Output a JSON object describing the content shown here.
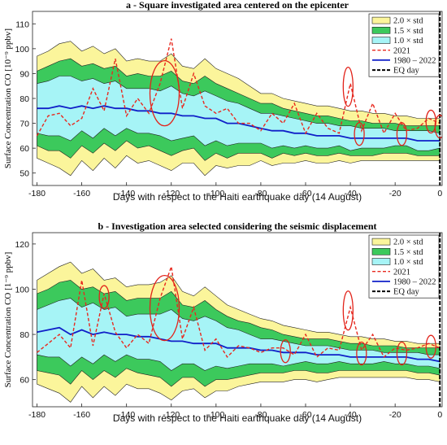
{
  "chart_data": [
    {
      "type": "area",
      "title": "a - Square investigated area centered on the epicenter",
      "xlabel": "Days with respect to the Haiti earthquake day (14 August)",
      "ylabel": "Surface Concentration CO [10⁻⁹ ppbv]",
      "xlim": [
        -182,
        1
      ],
      "ylim": [
        45,
        115
      ],
      "xticks": [
        -180,
        -160,
        -140,
        -120,
        -100,
        -80,
        -60,
        -40,
        -20,
        0
      ],
      "yticks": [
        50,
        60,
        70,
        80,
        90,
        100,
        110
      ],
      "grid": false,
      "legend_position": "top-right",
      "legend": [
        "2.0 × std",
        "1.5 × std",
        "1.0 × std",
        "2021",
        "1980 – 2022",
        "EQ day"
      ],
      "x": [
        -180,
        -175,
        -170,
        -165,
        -160,
        -155,
        -150,
        -145,
        -140,
        -135,
        -130,
        -125,
        -120,
        -115,
        -110,
        -105,
        -100,
        -95,
        -90,
        -85,
        -80,
        -75,
        -70,
        -65,
        -60,
        -55,
        -50,
        -45,
        -40,
        -35,
        -30,
        -25,
        -20,
        -15,
        -10,
        -5,
        0
      ],
      "series": [
        {
          "name": "1980 – 2022",
          "values": [
            76,
            76,
            77,
            76,
            77,
            76,
            77,
            76,
            76,
            75,
            75,
            74,
            74,
            73,
            73,
            72,
            72,
            70,
            70,
            69,
            68,
            67,
            67,
            66,
            66,
            65,
            65,
            65,
            64,
            64,
            64,
            64,
            64,
            64,
            63,
            63,
            63
          ]
        },
        {
          "name": "2021",
          "values": [
            65,
            73,
            74,
            69,
            72,
            84,
            75,
            96,
            73,
            80,
            74,
            86,
            104,
            76,
            90,
            77,
            74,
            76,
            70,
            70,
            67,
            74,
            70,
            78,
            66,
            74,
            68,
            66,
            86,
            67,
            78,
            66,
            74,
            67,
            68,
            72,
            70
          ]
        },
        {
          "name": "2.0 × std upper",
          "values": [
            97,
            99,
            102,
            103,
            99,
            101,
            98,
            100,
            95,
            96,
            95,
            95,
            98,
            93,
            92,
            96,
            92,
            90,
            88,
            85,
            82,
            82,
            80,
            79,
            78,
            77,
            77,
            76,
            75,
            75,
            74,
            74,
            73,
            73,
            72,
            72,
            72
          ]
        },
        {
          "name": "1.5 × std upper",
          "values": [
            91,
            93,
            95,
            96,
            93,
            94,
            92,
            93,
            89,
            90,
            89,
            89,
            91,
            87,
            86,
            89,
            86,
            84,
            82,
            80,
            78,
            78,
            76,
            75,
            74,
            73,
            73,
            72,
            71,
            71,
            70,
            70,
            70,
            69,
            69,
            69,
            69
          ]
        },
        {
          "name": "1.0 × std upper",
          "values": [
            86,
            87,
            89,
            89,
            87,
            88,
            86,
            87,
            84,
            84,
            84,
            83,
            85,
            82,
            81,
            83,
            81,
            79,
            78,
            76,
            74,
            74,
            73,
            72,
            71,
            70,
            70,
            69,
            69,
            68,
            68,
            68,
            67,
            67,
            67,
            67,
            66
          ]
        },
        {
          "name": "1.0 × std lower",
          "values": [
            66,
            65,
            65,
            63,
            67,
            64,
            68,
            65,
            68,
            66,
            66,
            65,
            63,
            64,
            65,
            61,
            63,
            61,
            62,
            62,
            62,
            60,
            61,
            60,
            61,
            60,
            60,
            61,
            59,
            60,
            60,
            60,
            61,
            61,
            59,
            59,
            60
          ]
        },
        {
          "name": "1.5 × std lower",
          "values": [
            61,
            59,
            59,
            56,
            61,
            58,
            62,
            59,
            63,
            60,
            61,
            59,
            57,
            59,
            60,
            55,
            58,
            56,
            58,
            58,
            58,
            56,
            58,
            57,
            58,
            57,
            57,
            58,
            57,
            57,
            57,
            58,
            58,
            58,
            57,
            57,
            57
          ]
        },
        {
          "name": "2.0 × std lower",
          "values": [
            56,
            54,
            52,
            49,
            55,
            51,
            56,
            52,
            57,
            54,
            55,
            53,
            51,
            54,
            54,
            49,
            53,
            52,
            53,
            53,
            55,
            53,
            54,
            54,
            55,
            54,
            54,
            55,
            54,
            55,
            55,
            55,
            55,
            55,
            55,
            55,
            55
          ]
        }
      ],
      "highlighted_days": [
        -123,
        -41,
        -36,
        -17,
        -4,
        0
      ]
    },
    {
      "type": "area",
      "title": "b - Investigation area selected considering the seismic displacement",
      "xlabel": "Days with respect to the Haiti earthquake day (14 August)",
      "ylabel": "Surface Concentration CO [1⁻⁹ ppbv]",
      "xlim": [
        -182,
        1
      ],
      "ylim": [
        48,
        125
      ],
      "xticks": [
        -180,
        -160,
        -140,
        -120,
        -100,
        -80,
        -60,
        -40,
        -20,
        0
      ],
      "yticks": [
        60,
        80,
        100,
        120
      ],
      "grid": false,
      "legend_position": "top-right",
      "legend": [
        "2.0 × std",
        "1.5 × std",
        "1.0 × std",
        "2021",
        "1980 – 2022",
        "EQ day"
      ],
      "x": [
        -180,
        -175,
        -170,
        -165,
        -160,
        -155,
        -150,
        -145,
        -140,
        -135,
        -130,
        -125,
        -120,
        -115,
        -110,
        -105,
        -100,
        -95,
        -90,
        -85,
        -80,
        -75,
        -70,
        -65,
        -60,
        -55,
        -50,
        -45,
        -40,
        -35,
        -30,
        -25,
        -20,
        -15,
        -10,
        -5,
        0
      ],
      "series": [
        {
          "name": "1980 – 2022",
          "values": [
            81,
            82,
            83,
            80,
            82,
            80,
            81,
            80,
            80,
            79,
            79,
            78,
            77,
            77,
            76,
            76,
            76,
            74,
            74,
            74,
            73,
            73,
            72,
            72,
            72,
            71,
            71,
            71,
            70,
            70,
            70,
            70,
            70,
            70,
            69,
            69,
            68
          ]
        },
        {
          "name": "2021",
          "values": [
            72,
            76,
            80,
            74,
            104,
            75,
            98,
            81,
            74,
            80,
            76,
            96,
            110,
            78,
            92,
            73,
            78,
            70,
            75,
            74,
            72,
            74,
            74,
            71,
            80,
            70,
            74,
            73,
            92,
            73,
            80,
            70,
            74,
            73,
            74,
            76,
            74
          ]
        },
        {
          "name": "2.0 × std upper",
          "values": [
            104,
            107,
            110,
            112,
            107,
            109,
            104,
            105,
            101,
            102,
            102,
            103,
            106,
            99,
            97,
            101,
            97,
            93,
            91,
            89,
            87,
            86,
            84,
            83,
            82,
            81,
            81,
            80,
            79,
            79,
            78,
            78,
            77,
            77,
            76,
            76,
            76
          ]
        },
        {
          "name": "1.5 × std upper",
          "values": [
            98,
            100,
            103,
            104,
            100,
            101,
            98,
            99,
            95,
            96,
            96,
            96,
            99,
            93,
            92,
            95,
            91,
            88,
            86,
            85,
            83,
            82,
            80,
            79,
            78,
            78,
            78,
            77,
            76,
            76,
            75,
            75,
            75,
            74,
            74,
            74,
            74
          ]
        },
        {
          "name": "1.0 × std upper",
          "values": [
            91,
            93,
            95,
            96,
            92,
            94,
            91,
            92,
            88,
            89,
            89,
            89,
            91,
            87,
            86,
            88,
            86,
            83,
            82,
            80,
            78,
            78,
            77,
            76,
            75,
            75,
            75,
            74,
            73,
            73,
            73,
            72,
            72,
            72,
            72,
            71,
            71
          ]
        },
        {
          "name": "1.0 × std lower",
          "values": [
            71,
            70,
            70,
            66,
            70,
            67,
            71,
            68,
            71,
            69,
            69,
            68,
            64,
            67,
            67,
            64,
            66,
            65,
            66,
            67,
            67,
            67,
            66,
            67,
            68,
            67,
            67,
            68,
            67,
            67,
            67,
            68,
            67,
            67,
            66,
            66,
            65
          ]
        },
        {
          "name": "1.5 × std lower",
          "values": [
            64,
            63,
            62,
            58,
            64,
            60,
            64,
            61,
            65,
            63,
            62,
            61,
            57,
            61,
            61,
            57,
            60,
            60,
            61,
            62,
            63,
            63,
            63,
            64,
            64,
            63,
            63,
            64,
            64,
            64,
            64,
            64,
            64,
            64,
            63,
            63,
            62
          ]
        },
        {
          "name": "2.0 × std lower",
          "values": [
            58,
            56,
            54,
            50,
            57,
            52,
            57,
            53,
            58,
            56,
            56,
            54,
            51,
            55,
            56,
            52,
            55,
            55,
            57,
            58,
            59,
            59,
            59,
            60,
            60,
            59,
            60,
            61,
            61,
            61,
            61,
            61,
            61,
            61,
            60,
            60,
            59
          ]
        }
      ],
      "highlighted_days": [
        -150,
        -123,
        -69,
        -41,
        -35,
        -17,
        -4
      ]
    }
  ]
}
